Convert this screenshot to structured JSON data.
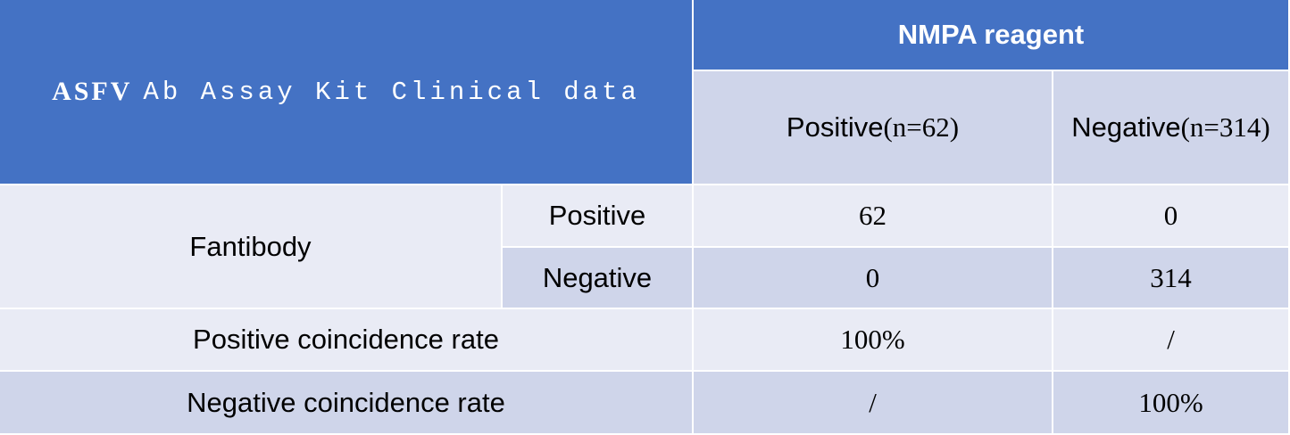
{
  "table": {
    "title": {
      "main": "ASFV",
      "rest": "Ab Assay Kit Clinical data"
    },
    "group_header": "NMPA reagent",
    "columns": [
      {
        "label": "Positive",
        "count": "(n=62)"
      },
      {
        "label": "Negative",
        "count": "(n=314)"
      }
    ],
    "row_group": "Fantibody",
    "rows": [
      {
        "label": "Positive",
        "values": [
          "62",
          "0"
        ]
      },
      {
        "label": "Negative",
        "values": [
          "0",
          "314"
        ]
      },
      {
        "label": "Positive coincidence rate",
        "values": [
          "100%",
          "/"
        ]
      },
      {
        "label": "Negative coincidence rate",
        "values": [
          "/",
          "100%"
        ]
      }
    ]
  }
}
